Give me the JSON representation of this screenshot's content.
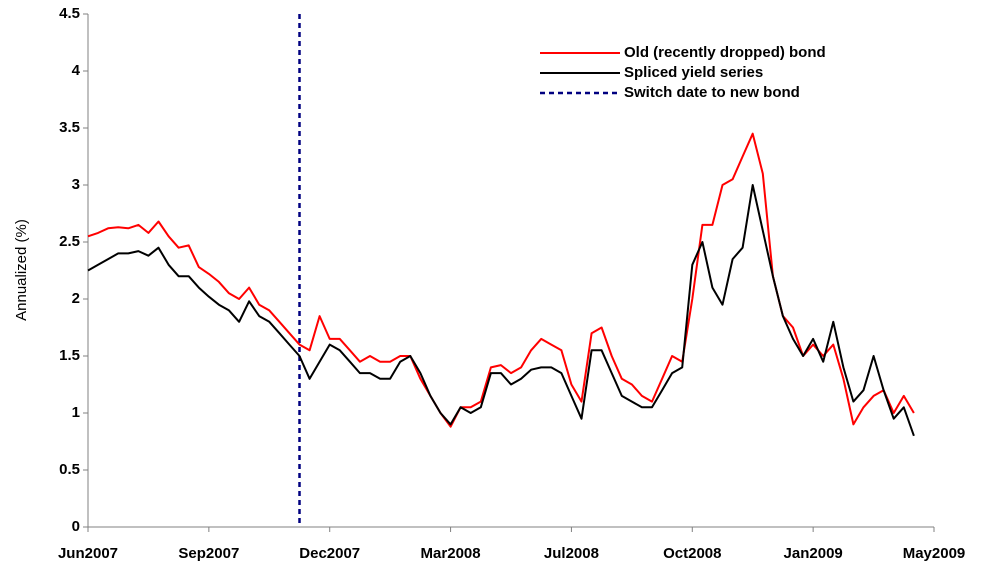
{
  "chart_data": {
    "type": "line",
    "ylabel": "Annualized (%)",
    "categories": [
      "Jun2007",
      null,
      null,
      null,
      null,
      null,
      null,
      null,
      null,
      null,
      null,
      null,
      "Sep2007",
      null,
      null,
      null,
      null,
      null,
      null,
      null,
      null,
      null,
      null,
      null,
      "Dec2007",
      null,
      null,
      null,
      null,
      null,
      null,
      null,
      null,
      null,
      null,
      null,
      "Mar2008",
      null,
      null,
      null,
      null,
      null,
      null,
      null,
      null,
      null,
      null,
      null,
      "Jul2008",
      null,
      null,
      null,
      null,
      null,
      null,
      null,
      null,
      null,
      null,
      null,
      "Oct2008",
      null,
      null,
      null,
      null,
      null,
      null,
      null,
      null,
      null,
      null,
      null,
      "Jan2009",
      null,
      null,
      null,
      null,
      null,
      null,
      null,
      null,
      null,
      null,
      null,
      "May2009"
    ],
    "series": [
      {
        "name": "Old (recently dropped) bond",
        "color": "#ff0000",
        "values": [
          2.55,
          2.58,
          2.62,
          2.63,
          2.62,
          2.65,
          2.58,
          2.68,
          2.55,
          2.45,
          2.47,
          2.28,
          2.22,
          2.15,
          2.05,
          2.0,
          2.1,
          1.95,
          1.9,
          1.8,
          1.7,
          1.6,
          1.55,
          1.85,
          1.65,
          1.65,
          1.55,
          1.45,
          1.5,
          1.45,
          1.45,
          1.5,
          1.5,
          1.3,
          1.15,
          1.0,
          0.88,
          1.05,
          1.05,
          1.1,
          1.4,
          1.42,
          1.35,
          1.4,
          1.55,
          1.65,
          1.6,
          1.55,
          1.25,
          1.1,
          1.7,
          1.75,
          1.5,
          1.3,
          1.25,
          1.15,
          1.1,
          1.3,
          1.5,
          1.45,
          2.0,
          2.65,
          2.65,
          3.0,
          3.05,
          3.25,
          3.45,
          3.1,
          2.2,
          1.85,
          1.75,
          1.5,
          1.6,
          1.5,
          1.6,
          1.3,
          0.9,
          1.05,
          1.15,
          1.2,
          1.0,
          1.15,
          1.0,
          null,
          null
        ]
      },
      {
        "name": "Spliced yield series",
        "color": "#000000",
        "values": [
          2.25,
          2.3,
          2.35,
          2.4,
          2.4,
          2.42,
          2.38,
          2.45,
          2.3,
          2.2,
          2.2,
          2.1,
          2.02,
          1.95,
          1.9,
          1.8,
          1.98,
          1.85,
          1.8,
          1.7,
          1.6,
          1.5,
          1.3,
          1.45,
          1.6,
          1.55,
          1.45,
          1.35,
          1.35,
          1.3,
          1.3,
          1.45,
          1.5,
          1.35,
          1.15,
          1.0,
          0.9,
          1.05,
          1.0,
          1.05,
          1.35,
          1.35,
          1.25,
          1.3,
          1.38,
          1.4,
          1.4,
          1.35,
          1.15,
          0.95,
          1.55,
          1.55,
          1.35,
          1.15,
          1.1,
          1.05,
          1.05,
          1.2,
          1.35,
          1.4,
          2.3,
          2.5,
          2.1,
          1.95,
          2.35,
          2.45,
          3.0,
          2.6,
          2.2,
          1.85,
          1.65,
          1.5,
          1.65,
          1.45,
          1.8,
          1.4,
          1.1,
          1.2,
          1.5,
          1.2,
          0.95,
          1.05,
          0.8,
          null,
          null
        ]
      }
    ],
    "vline": {
      "name": "Switch date to new bond",
      "color": "#000080",
      "index": 21
    },
    "ylim": [
      0,
      4.5
    ],
    "yticks": [
      0,
      0.5,
      1,
      1.5,
      2,
      2.5,
      3,
      3.5,
      4,
      4.5
    ],
    "legend": "top-right",
    "grid": false
  }
}
